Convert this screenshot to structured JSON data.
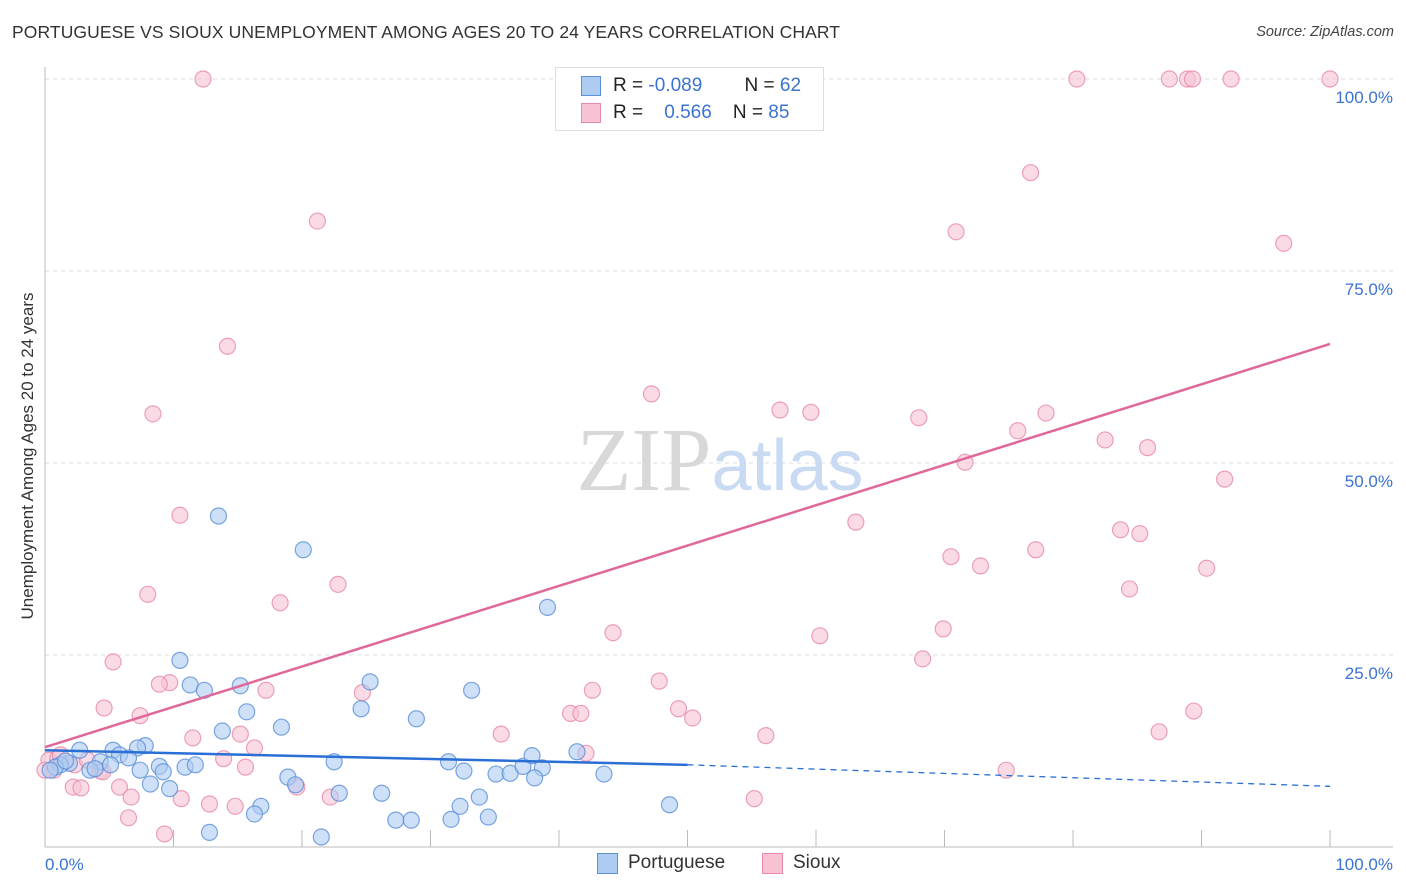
{
  "title": "PORTUGUESE VS SIOUX UNEMPLOYMENT AMONG AGES 20 TO 24 YEARS CORRELATION CHART",
  "source": "Source: ZipAtlas.com",
  "chart_data": {
    "type": "scatter",
    "title": "PORTUGUESE VS SIOUX UNEMPLOYMENT AMONG AGES 20 TO 24 YEARS CORRELATION CHART",
    "xlabel": "",
    "ylabel": "Unemployment Among Ages 20 to 24 years",
    "xlim": [
      0,
      100
    ],
    "ylim": [
      0,
      100
    ],
    "x_tick_labels": [
      "0.0%",
      "100.0%"
    ],
    "y_tick_labels": [
      "100.0%",
      "75.0%",
      "50.0%",
      "25.0%"
    ],
    "y_ticks": [
      100,
      75,
      50,
      25
    ],
    "grid": true,
    "legend_position": "bottom",
    "watermark": "ZIPatlas",
    "series": [
      {
        "name": "Portuguese",
        "color": "#5b8fd9",
        "fill": "#aecbf2",
        "line_color": "#2a6fd6",
        "R": "-0.089",
        "N": "62",
        "trend": {
          "x0": 0,
          "y0": 12.6,
          "x_solid_end": 50,
          "y_solid_end": 10.7,
          "x1": 100,
          "y1": 7.9
        },
        "points": [
          [
            13.5,
            43.1
          ],
          [
            20.1,
            38.7
          ],
          [
            39.1,
            31.2
          ],
          [
            10.5,
            24.3
          ],
          [
            11.3,
            21.1
          ],
          [
            12.4,
            20.4
          ],
          [
            15.2,
            21.0
          ],
          [
            25.3,
            21.5
          ],
          [
            33.2,
            20.4
          ],
          [
            15.7,
            17.6
          ],
          [
            24.6,
            18.0
          ],
          [
            28.9,
            16.7
          ],
          [
            18.4,
            15.6
          ],
          [
            13.8,
            15.1
          ],
          [
            7.8,
            13.2
          ],
          [
            7.2,
            12.9
          ],
          [
            5.3,
            12.6
          ],
          [
            2.7,
            12.6
          ],
          [
            5.8,
            12.0
          ],
          [
            6.5,
            11.6
          ],
          [
            4.3,
            11.1
          ],
          [
            1.9,
            10.9
          ],
          [
            1.2,
            10.7
          ],
          [
            0.8,
            10.4
          ],
          [
            0.4,
            10.0
          ],
          [
            3.5,
            10.0
          ],
          [
            8.9,
            10.5
          ],
          [
            9.2,
            9.8
          ],
          [
            10.9,
            10.4
          ],
          [
            11.7,
            10.7
          ],
          [
            22.5,
            11.1
          ],
          [
            31.4,
            11.1
          ],
          [
            32.6,
            9.9
          ],
          [
            35.1,
            9.5
          ],
          [
            36.2,
            9.6
          ],
          [
            37.2,
            10.5
          ],
          [
            37.9,
            11.9
          ],
          [
            38.7,
            10.3
          ],
          [
            38.1,
            9.0
          ],
          [
            41.4,
            12.4
          ],
          [
            43.5,
            9.5
          ],
          [
            8.2,
            8.2
          ],
          [
            9.7,
            7.6
          ],
          [
            18.9,
            9.1
          ],
          [
            19.5,
            8.1
          ],
          [
            22.9,
            7.0
          ],
          [
            26.2,
            7.0
          ],
          [
            16.8,
            5.3
          ],
          [
            16.3,
            4.3
          ],
          [
            32.3,
            5.3
          ],
          [
            33.8,
            6.5
          ],
          [
            34.5,
            3.9
          ],
          [
            31.6,
            3.6
          ],
          [
            27.3,
            3.5
          ],
          [
            28.5,
            3.5
          ],
          [
            48.6,
            5.5
          ],
          [
            12.8,
            1.9
          ],
          [
            21.5,
            1.3
          ],
          [
            3.9,
            10.2
          ],
          [
            1.6,
            11.2
          ],
          [
            7.4,
            10.0
          ],
          [
            5.1,
            10.7
          ]
        ]
      },
      {
        "name": "Sioux",
        "color": "#e88aa8",
        "fill": "#f7c3d3",
        "line_color": "#e0679a",
        "R": "0.566",
        "N": "85",
        "trend": {
          "x0": 0,
          "y0": 13.0,
          "x1": 100,
          "y1": 65.5
        },
        "points": [
          [
            12.3,
            100
          ],
          [
            55.6,
            100
          ],
          [
            80.3,
            100
          ],
          [
            87.5,
            100
          ],
          [
            88.9,
            100
          ],
          [
            89.3,
            100
          ],
          [
            92.3,
            100
          ],
          [
            100,
            100
          ],
          [
            76.7,
            87.8
          ],
          [
            21.2,
            81.5
          ],
          [
            70.9,
            80.1
          ],
          [
            96.4,
            78.6
          ],
          [
            14.2,
            65.2
          ],
          [
            47.2,
            59.0
          ],
          [
            8.4,
            56.4
          ],
          [
            57.2,
            56.9
          ],
          [
            59.6,
            56.6
          ],
          [
            68.0,
            55.9
          ],
          [
            77.9,
            56.5
          ],
          [
            75.7,
            54.2
          ],
          [
            82.5,
            53.0
          ],
          [
            85.8,
            52.0
          ],
          [
            71.6,
            50.1
          ],
          [
            91.8,
            47.9
          ],
          [
            10.5,
            43.2
          ],
          [
            63.1,
            42.3
          ],
          [
            83.7,
            41.3
          ],
          [
            85.2,
            40.8
          ],
          [
            70.5,
            37.8
          ],
          [
            77.1,
            38.7
          ],
          [
            72.8,
            36.6
          ],
          [
            90.4,
            36.3
          ],
          [
            84.4,
            33.6
          ],
          [
            8.0,
            32.9
          ],
          [
            22.8,
            34.2
          ],
          [
            18.3,
            31.8
          ],
          [
            44.2,
            27.9
          ],
          [
            69.9,
            28.4
          ],
          [
            60.3,
            27.5
          ],
          [
            5.3,
            24.1
          ],
          [
            68.3,
            24.5
          ],
          [
            47.8,
            21.6
          ],
          [
            9.7,
            21.4
          ],
          [
            8.9,
            21.2
          ],
          [
            42.6,
            20.4
          ],
          [
            17.2,
            20.4
          ],
          [
            24.7,
            20.1
          ],
          [
            49.3,
            18.0
          ],
          [
            50.4,
            16.8
          ],
          [
            4.6,
            18.1
          ],
          [
            7.4,
            17.1
          ],
          [
            40.9,
            17.4
          ],
          [
            41.7,
            17.4
          ],
          [
            89.4,
            17.7
          ],
          [
            11.5,
            14.2
          ],
          [
            15.2,
            14.7
          ],
          [
            35.5,
            14.7
          ],
          [
            56.1,
            14.5
          ],
          [
            86.7,
            15.0
          ],
          [
            16.3,
            12.9
          ],
          [
            0.3,
            11.3
          ],
          [
            1.0,
            11.6
          ],
          [
            13.9,
            11.5
          ],
          [
            42.1,
            12.2
          ],
          [
            4.3,
            9.9
          ],
          [
            15.6,
            10.4
          ],
          [
            74.8,
            10.0
          ],
          [
            2.2,
            7.8
          ],
          [
            2.8,
            7.7
          ],
          [
            5.8,
            7.8
          ],
          [
            12.8,
            5.6
          ],
          [
            10.6,
            6.3
          ],
          [
            14.8,
            5.3
          ],
          [
            6.7,
            6.5
          ],
          [
            19.6,
            7.8
          ],
          [
            22.2,
            6.5
          ],
          [
            55.2,
            6.3
          ],
          [
            6.5,
            3.8
          ],
          [
            9.3,
            1.7
          ],
          [
            1.2,
            12.0
          ],
          [
            2.3,
            10.7
          ],
          [
            3.3,
            11.3
          ],
          [
            0.7,
            10.0
          ],
          [
            4.5,
            9.8
          ],
          [
            0.0,
            10.0
          ]
        ]
      }
    ]
  },
  "legend": {
    "r_label": "R =",
    "n_label": "N ="
  }
}
